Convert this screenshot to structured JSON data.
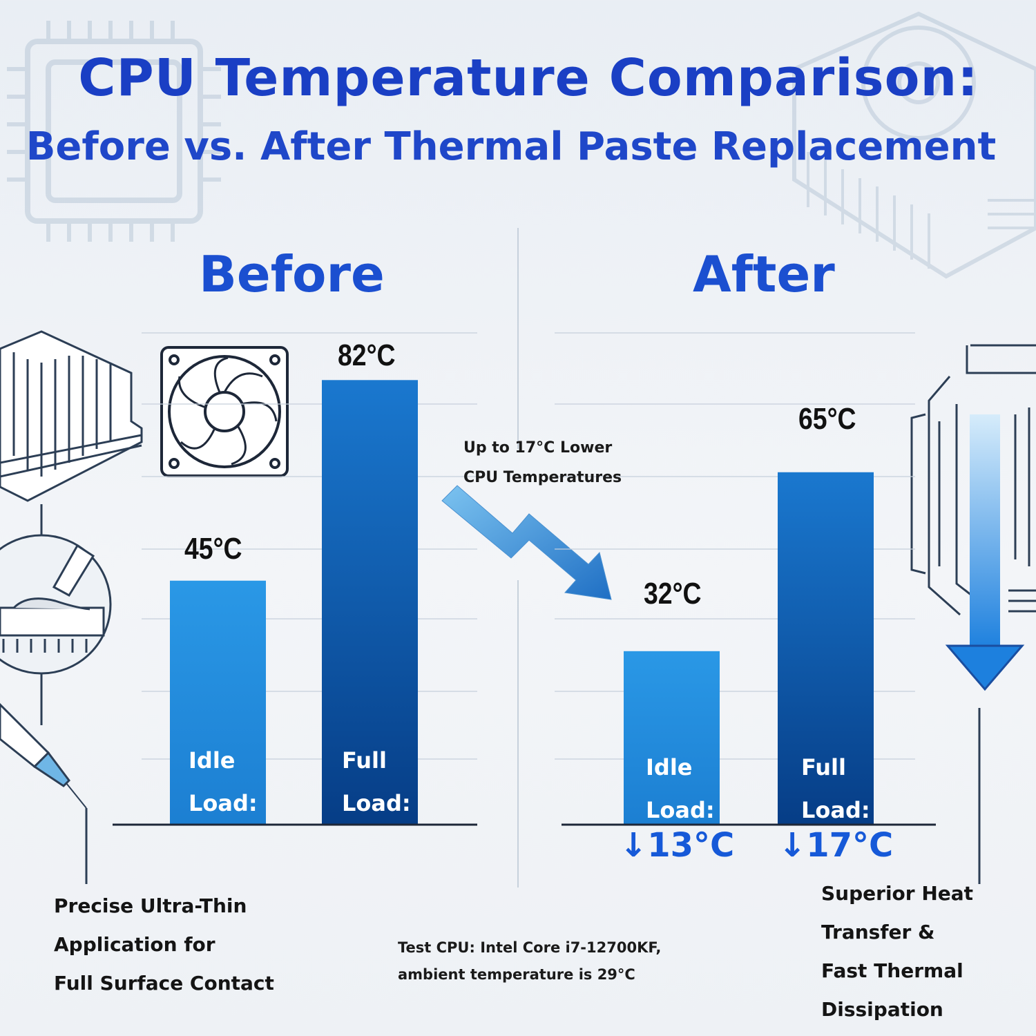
{
  "title": "CPU Temperature Comparison:",
  "subtitle": "Before vs. After Thermal Paste Replacement",
  "panels": {
    "before": "Before",
    "after": "After"
  },
  "annotation": "Up to 17°C Lower\nCPU Temperatures",
  "captions": {
    "left": "Precise Ultra-Thin\nApplication for\nFull Surface Contact",
    "right": "Superior Heat\nTransfer &\nFast Thermal\nDissipation",
    "test_note": "Test CPU: Intel Core i7-12700KF,\nambient temperature is 29°C"
  },
  "icons": [
    "cpu-chip-icon",
    "heatsink-fan-icon",
    "heatsink-icon",
    "case-fan-icon",
    "paste-application-icon",
    "syringe-icon",
    "cooler-tower-icon",
    "down-arrow-icon",
    "zigzag-down-arrow-icon"
  ],
  "colors": {
    "title": "#1a3fc4",
    "idle_bar": "#2592e0",
    "full_bar": "#0b4a9a",
    "drop": "#1659d8"
  },
  "chart_data": [
    {
      "type": "bar",
      "title": "Before",
      "categories": [
        "Idle\nLoad:",
        "Full\nLoad:"
      ],
      "values": [
        45,
        82
      ],
      "value_labels": [
        "45°C",
        "82°C"
      ],
      "unit": "°C"
    },
    {
      "type": "bar",
      "title": "After",
      "categories": [
        "Idle\nLoad:",
        "Full\nLoad:"
      ],
      "values": [
        32,
        65
      ],
      "value_labels": [
        "32°C",
        "65°C"
      ],
      "reductions": [
        "↓13°C",
        "↓17°C"
      ],
      "unit": "°C"
    }
  ]
}
